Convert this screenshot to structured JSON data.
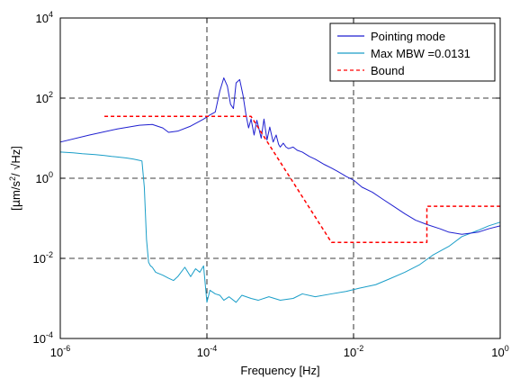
{
  "chart_data": {
    "type": "line",
    "xscale": "log",
    "yscale": "log",
    "xlim": [
      1e-06,
      1
    ],
    "ylim": [
      0.0001,
      10000
    ],
    "grid": true,
    "legend_position": "top-right",
    "xlabel": "Frequency [Hz]",
    "ylabel": "[μm/s²/ √Hz]",
    "ylabel_parts": {
      "pre": "[",
      "mu": "μ",
      "m_s": "m/s",
      "sq": "2",
      "post": "/ √Hz]"
    },
    "x_ticks": [
      {
        "base": "10",
        "exp": "-6",
        "value": 1e-06
      },
      {
        "base": "10",
        "exp": "-4",
        "value": 0.0001
      },
      {
        "base": "10",
        "exp": "-2",
        "value": 0.01
      },
      {
        "base": "10",
        "exp": "0",
        "value": 1
      }
    ],
    "y_ticks": [
      {
        "base": "10",
        "exp": "-4",
        "value": 0.0001
      },
      {
        "base": "10",
        "exp": "-2",
        "value": 0.01
      },
      {
        "base": "10",
        "exp": "0",
        "value": 1
      },
      {
        "base": "10",
        "exp": "2",
        "value": 100
      },
      {
        "base": "10",
        "exp": "4",
        "value": 10000
      }
    ],
    "series": [
      {
        "name": "Pointing mode",
        "color": "#1f1fd0",
        "style": "solid",
        "x": [
          1e-06,
          2.5e-06,
          6e-06,
          1.2e-05,
          1.8e-05,
          2.5e-05,
          3e-05,
          4e-05,
          6e-05,
          9e-05,
          0.00011,
          0.00013,
          0.00015,
          0.00017,
          0.00019,
          0.00021,
          0.00023,
          0.00025,
          0.00028,
          0.00031,
          0.00034,
          0.00037,
          0.0004,
          0.00044,
          0.00048,
          0.00055,
          0.0006,
          0.00066,
          0.00072,
          0.0008,
          0.00088,
          0.00095,
          0.001,
          0.0011,
          0.0012,
          0.0013,
          0.0015,
          0.0017,
          0.002,
          0.0025,
          0.003,
          0.004,
          0.005,
          0.006,
          0.008,
          0.01,
          0.013,
          0.018,
          0.025,
          0.035,
          0.05,
          0.07,
          0.1,
          0.15,
          0.2,
          0.3,
          0.5,
          0.7,
          1
        ],
        "y": [
          8,
          12,
          17,
          21,
          22,
          18,
          14,
          15,
          20,
          30,
          38,
          45,
          150,
          320,
          200,
          70,
          55,
          240,
          290,
          120,
          40,
          18,
          30,
          12,
          28,
          10,
          30,
          9,
          19,
          8,
          12,
          7,
          6,
          7.5,
          6,
          5.5,
          6,
          5,
          4.5,
          3.5,
          3,
          2.2,
          1.8,
          1.5,
          1.1,
          0.9,
          0.6,
          0.45,
          0.3,
          0.2,
          0.13,
          0.09,
          0.07,
          0.055,
          0.045,
          0.04,
          0.045,
          0.055,
          0.065
        ]
      },
      {
        "name": "Max MBW =0.0131",
        "color": "#1a9ec8",
        "style": "solid",
        "x": [
          1e-06,
          1.5e-06,
          2e-06,
          3e-06,
          4e-06,
          5e-06,
          6e-06,
          8e-06,
          1e-05,
          1.2e-05,
          1.3e-05,
          1.4e-05,
          1.5e-05,
          1.6e-05,
          1.7e-05,
          1.8e-05,
          2e-05,
          2.5e-05,
          3e-05,
          3.5e-05,
          4e-05,
          5e-05,
          6e-05,
          7e-05,
          8e-05,
          9e-05,
          0.0001,
          0.00011,
          0.00013,
          0.00015,
          0.00017,
          0.0002,
          0.00025,
          0.0003,
          0.0004,
          0.0005,
          0.0007,
          0.001,
          0.0015,
          0.002,
          0.003,
          0.005,
          0.008,
          0.012,
          0.02,
          0.03,
          0.05,
          0.08,
          0.12,
          0.2,
          0.3,
          0.5,
          0.7,
          1
        ],
        "y": [
          4.5,
          4.3,
          4.1,
          3.9,
          3.7,
          3.5,
          3.4,
          3.2,
          3,
          2.8,
          2.7,
          0.6,
          0.03,
          0.008,
          0.0065,
          0.006,
          0.0045,
          0.0038,
          0.0032,
          0.0028,
          0.0035,
          0.006,
          0.0035,
          0.0055,
          0.0045,
          0.0065,
          0.0008,
          0.0016,
          0.0013,
          0.0012,
          0.0009,
          0.0011,
          0.0008,
          0.0012,
          0.001,
          0.0009,
          0.0011,
          0.0009,
          0.001,
          0.0013,
          0.0011,
          0.0013,
          0.0015,
          0.0018,
          0.0022,
          0.003,
          0.0045,
          0.007,
          0.012,
          0.02,
          0.035,
          0.05,
          0.065,
          0.08
        ]
      },
      {
        "name": "Bound",
        "color": "#ff0000",
        "style": "dashed",
        "x": [
          4e-06,
          0.0004,
          0.005,
          0.1,
          0.1,
          1
        ],
        "y": [
          35,
          35,
          0.025,
          0.025,
          0.2,
          0.2
        ]
      }
    ]
  },
  "legend": {
    "items": [
      {
        "label": "Pointing mode",
        "color": "#1f1fd0",
        "dashed": false
      },
      {
        "label": "Max MBW =0.0131",
        "color": "#1a9ec8",
        "dashed": false
      },
      {
        "label": "Bound",
        "color": "#ff0000",
        "dashed": true
      }
    ]
  }
}
